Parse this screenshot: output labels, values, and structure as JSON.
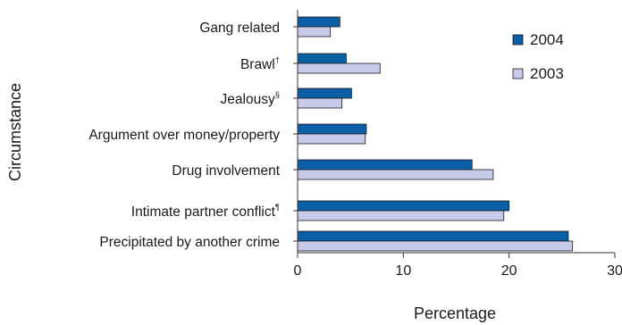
{
  "chart_data": {
    "type": "bar",
    "orientation": "horizontal",
    "xlabel": "Percentage",
    "ylabel": "Circumstance",
    "xlim": [
      0,
      30
    ],
    "xticks": [
      0,
      10,
      20,
      30
    ],
    "grid": false,
    "legend_position": "top-right",
    "categories": [
      {
        "label": "Gang related",
        "sup": ""
      },
      {
        "label": "Brawl",
        "sup": "†"
      },
      {
        "label": "Jealousy",
        "sup": "§"
      },
      {
        "label": "Argument over money/property",
        "sup": ""
      },
      {
        "label": "Drug involvement",
        "sup": ""
      },
      {
        "label": "Intimate partner conflict",
        "sup": "¶"
      },
      {
        "label": "Precipitated by another crime",
        "sup": ""
      }
    ],
    "series": [
      {
        "name": "2004",
        "color": "#0b5fa5",
        "values": [
          4.0,
          4.6,
          5.1,
          6.5,
          16.5,
          20.0,
          25.6
        ]
      },
      {
        "name": "2003",
        "color": "#c5cbe8",
        "values": [
          3.1,
          7.8,
          4.2,
          6.4,
          18.5,
          19.5,
          26.0
        ]
      }
    ]
  }
}
